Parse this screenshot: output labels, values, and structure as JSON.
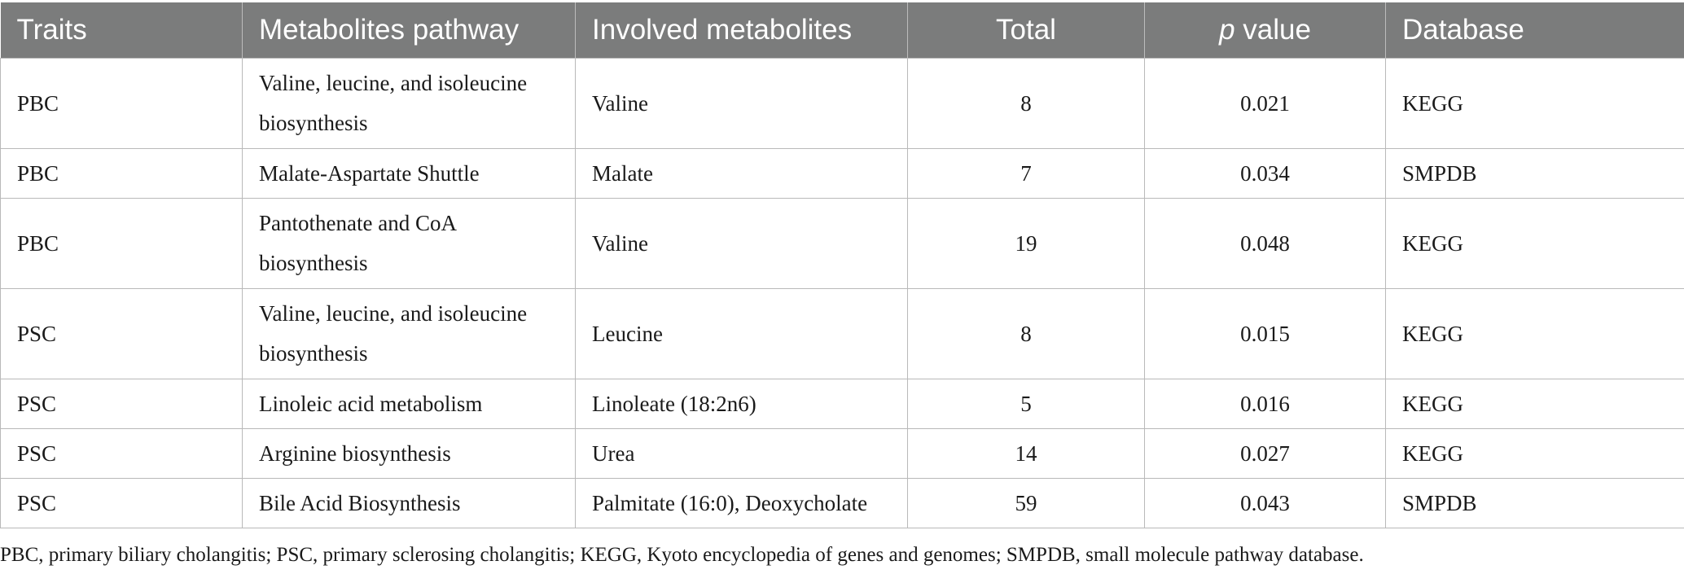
{
  "table": {
    "headers": {
      "traits": "Traits",
      "pathway": "Metabolites pathway",
      "metabolites": "Involved metabolites",
      "total": "Total",
      "p_italic": "p",
      "p_rest": " value",
      "database": "Database"
    },
    "rows": [
      {
        "traits": "PBC",
        "pathway_l1": "Valine, leucine, and isoleucine",
        "pathway_l2": "biosynthesis",
        "metabolites": "Valine",
        "total": "8",
        "p": "0.021",
        "database": "KEGG"
      },
      {
        "traits": "PBC",
        "pathway_l1": "Malate-Aspartate Shuttle",
        "pathway_l2": "",
        "metabolites": "Malate",
        "total": "7",
        "p": "0.034",
        "database": "SMPDB"
      },
      {
        "traits": "PBC",
        "pathway_l1": "Pantothenate and CoA",
        "pathway_l2": "biosynthesis",
        "metabolites": "Valine",
        "total": "19",
        "p": "0.048",
        "database": "KEGG"
      },
      {
        "traits": "PSC",
        "pathway_l1": "Valine, leucine, and isoleucine",
        "pathway_l2": "biosynthesis",
        "metabolites": "Leucine",
        "total": "8",
        "p": "0.015",
        "database": "KEGG"
      },
      {
        "traits": "PSC",
        "pathway_l1": "Linoleic acid metabolism",
        "pathway_l2": "",
        "metabolites": "Linoleate (18:2n6)",
        "total": "5",
        "p": "0.016",
        "database": "KEGG"
      },
      {
        "traits": "PSC",
        "pathway_l1": "Arginine biosynthesis",
        "pathway_l2": "",
        "metabolites": "Urea",
        "total": "14",
        "p": "0.027",
        "database": "KEGG"
      },
      {
        "traits": "PSC",
        "pathway_l1": "Bile Acid Biosynthesis",
        "pathway_l2": "",
        "metabolites": "Palmitate (16:0), Deoxycholate",
        "total": "59",
        "p": "0.043",
        "database": "SMPDB"
      }
    ]
  },
  "footnote": "PBC, primary biliary cholangitis; PSC, primary sclerosing cholangitis; KEGG, Kyoto encyclopedia of genes and genomes; SMPDB, small molecule pathway database.",
  "colors": {
    "header_bg": "#7b7c7c",
    "header_text": "#ffffff",
    "grid_line": "#b9b9b9",
    "body_text": "#1a1a1a"
  }
}
